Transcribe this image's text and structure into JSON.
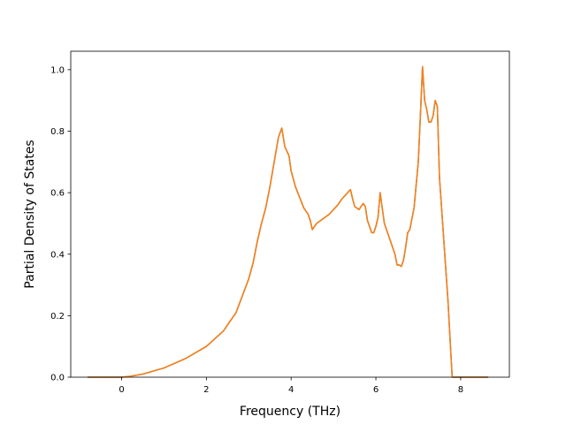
{
  "chart_data": {
    "type": "line",
    "title": "",
    "xlabel": "Frequency (THz)",
    "ylabel": "Partial Density of States",
    "xlim": [
      -1.2,
      9.15
    ],
    "ylim": [
      0.0,
      1.06
    ],
    "xticks": [
      0,
      2,
      4,
      6,
      8
    ],
    "yticks": [
      0.0,
      0.2,
      0.4,
      0.6,
      0.8,
      1.0
    ],
    "xtick_labels": [
      "0",
      "2",
      "4",
      "6",
      "8"
    ],
    "ytick_labels": [
      "0.0",
      "0.2",
      "0.4",
      "0.6",
      "0.8",
      "1.0"
    ],
    "grid": false,
    "legend": "none",
    "series": [
      {
        "color": "#1f77b4",
        "x": [
          -0.8,
          -0.4,
          0.0,
          0.2,
          0.5,
          1.0,
          1.5,
          2.0,
          2.4,
          2.7,
          3.0,
          3.1,
          3.2,
          3.3,
          3.4,
          3.5,
          3.6,
          3.7,
          3.78,
          3.85,
          3.95,
          4.0,
          4.1,
          4.2,
          4.3,
          4.4,
          4.45,
          4.5,
          4.6,
          4.7,
          4.8,
          4.9,
          5.0,
          5.1,
          5.2,
          5.3,
          5.4,
          5.45,
          5.5,
          5.6,
          5.65,
          5.7,
          5.75,
          5.8,
          5.85,
          5.9,
          5.95,
          6.0,
          6.05,
          6.1,
          6.15,
          6.2,
          6.3,
          6.4,
          6.45,
          6.5,
          6.55,
          6.6,
          6.65,
          6.7,
          6.75,
          6.8,
          6.9,
          7.0,
          7.05,
          7.1,
          7.15,
          7.2,
          7.25,
          7.3,
          7.35,
          7.4,
          7.45,
          7.5,
          7.6,
          7.7,
          7.8,
          7.9,
          8.0,
          8.2,
          8.4,
          8.65
        ],
        "values": [
          0.0,
          0.0,
          0.0,
          0.003,
          0.01,
          0.03,
          0.06,
          0.1,
          0.15,
          0.21,
          0.32,
          0.37,
          0.44,
          0.5,
          0.55,
          0.62,
          0.7,
          0.78,
          0.81,
          0.75,
          0.72,
          0.67,
          0.62,
          0.585,
          0.55,
          0.53,
          0.51,
          0.48,
          0.5,
          0.51,
          0.52,
          0.53,
          0.545,
          0.56,
          0.58,
          0.595,
          0.61,
          0.58,
          0.555,
          0.545,
          0.555,
          0.565,
          0.555,
          0.51,
          0.49,
          0.47,
          0.47,
          0.49,
          0.52,
          0.6,
          0.55,
          0.5,
          0.46,
          0.42,
          0.4,
          0.365,
          0.365,
          0.36,
          0.38,
          0.42,
          0.47,
          0.48,
          0.55,
          0.7,
          0.85,
          1.01,
          0.9,
          0.87,
          0.83,
          0.83,
          0.85,
          0.9,
          0.88,
          0.65,
          0.45,
          0.25,
          0.0,
          0.0,
          0.0,
          0.0,
          0.0,
          0.0
        ]
      },
      {
        "color": "#ff7f0e",
        "x": [
          -0.8,
          -0.4,
          0.0,
          0.2,
          0.5,
          1.0,
          1.5,
          2.0,
          2.4,
          2.7,
          3.0,
          3.1,
          3.2,
          3.3,
          3.4,
          3.5,
          3.6,
          3.7,
          3.78,
          3.85,
          3.95,
          4.0,
          4.1,
          4.2,
          4.3,
          4.4,
          4.45,
          4.5,
          4.6,
          4.7,
          4.8,
          4.9,
          5.0,
          5.1,
          5.2,
          5.3,
          5.4,
          5.45,
          5.5,
          5.6,
          5.65,
          5.7,
          5.75,
          5.8,
          5.85,
          5.9,
          5.95,
          6.0,
          6.05,
          6.1,
          6.15,
          6.2,
          6.3,
          6.4,
          6.45,
          6.5,
          6.55,
          6.6,
          6.65,
          6.7,
          6.75,
          6.8,
          6.9,
          7.0,
          7.05,
          7.1,
          7.15,
          7.2,
          7.25,
          7.3,
          7.35,
          7.4,
          7.45,
          7.5,
          7.6,
          7.7,
          7.8,
          7.9,
          8.0,
          8.2,
          8.4,
          8.65
        ],
        "values": [
          0.0,
          0.0,
          0.0,
          0.003,
          0.01,
          0.03,
          0.06,
          0.1,
          0.15,
          0.21,
          0.32,
          0.37,
          0.44,
          0.5,
          0.55,
          0.62,
          0.7,
          0.78,
          0.81,
          0.75,
          0.72,
          0.67,
          0.62,
          0.585,
          0.55,
          0.53,
          0.51,
          0.48,
          0.5,
          0.51,
          0.52,
          0.53,
          0.545,
          0.56,
          0.58,
          0.595,
          0.61,
          0.58,
          0.555,
          0.545,
          0.555,
          0.565,
          0.555,
          0.51,
          0.49,
          0.47,
          0.47,
          0.49,
          0.52,
          0.6,
          0.55,
          0.5,
          0.46,
          0.42,
          0.4,
          0.365,
          0.365,
          0.36,
          0.38,
          0.42,
          0.47,
          0.48,
          0.55,
          0.7,
          0.85,
          1.01,
          0.9,
          0.87,
          0.83,
          0.83,
          0.85,
          0.9,
          0.88,
          0.65,
          0.45,
          0.25,
          0.0,
          0.0,
          0.0,
          0.0,
          0.0,
          0.0
        ]
      }
    ]
  }
}
